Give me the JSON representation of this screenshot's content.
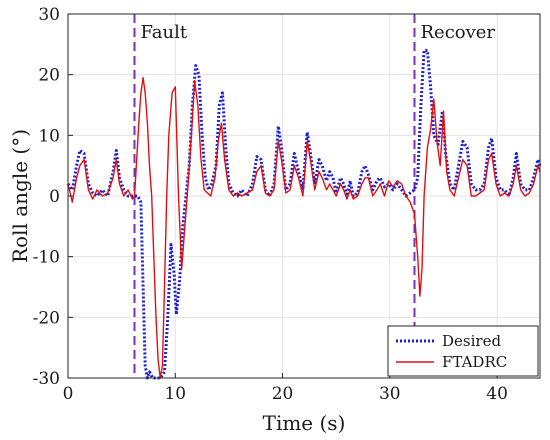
{
  "chart_data": {
    "type": "line",
    "xlabel": "Time (s)",
    "ylabel": "Roll angle (°)",
    "xlim": [
      0,
      44
    ],
    "ylim": [
      -30,
      30
    ],
    "xticks": [
      0,
      10,
      20,
      30,
      40
    ],
    "yticks": [
      -30,
      -20,
      -10,
      0,
      10,
      20,
      30
    ],
    "grid": true,
    "legend_position": "bottom-right",
    "annotations": [
      {
        "text": "Fault",
        "x": 6.2
      },
      {
        "text": "Recover",
        "x": 32.3
      }
    ],
    "vlines": [
      {
        "x": 6.2,
        "color": "#7b2fbf",
        "style": "dashed"
      },
      {
        "x": 32.3,
        "color": "#7b2fbf",
        "style": "dashed"
      }
    ],
    "series": [
      {
        "name": "Desired",
        "color": "#1f1fcf",
        "style": "dotted",
        "points": [
          [
            0,
            2
          ],
          [
            0.4,
            1
          ],
          [
            0.8,
            5
          ],
          [
            1.1,
            7.5
          ],
          [
            1.5,
            7
          ],
          [
            1.9,
            2
          ],
          [
            2.3,
            0.5
          ],
          [
            2.7,
            0
          ],
          [
            3.2,
            1
          ],
          [
            3.7,
            0
          ],
          [
            4.2,
            4
          ],
          [
            4.5,
            7.5
          ],
          [
            4.8,
            3
          ],
          [
            5.2,
            1
          ],
          [
            5.6,
            0
          ],
          [
            6.0,
            0
          ],
          [
            6.2,
            0
          ],
          [
            6.5,
            0
          ],
          [
            6.8,
            -1
          ],
          [
            7.0,
            -15
          ],
          [
            7.2,
            -28
          ],
          [
            7.4,
            -30
          ],
          [
            7.6,
            -29
          ],
          [
            7.9,
            -30
          ],
          [
            8.2,
            -30
          ],
          [
            8.6,
            -30
          ],
          [
            9.0,
            -29
          ],
          [
            9.3,
            -20
          ],
          [
            9.6,
            -8
          ],
          [
            9.9,
            -13
          ],
          [
            10.1,
            -19.5
          ],
          [
            10.4,
            -14
          ],
          [
            10.7,
            -5
          ],
          [
            11.0,
            0
          ],
          [
            11.3,
            5
          ],
          [
            11.6,
            15
          ],
          [
            11.9,
            21.5
          ],
          [
            12.2,
            20
          ],
          [
            12.5,
            10
          ],
          [
            12.8,
            3
          ],
          [
            13.1,
            1
          ],
          [
            13.4,
            2
          ],
          [
            13.8,
            5
          ],
          [
            14.1,
            15
          ],
          [
            14.4,
            17
          ],
          [
            14.7,
            8
          ],
          [
            15.0,
            2
          ],
          [
            15.4,
            0.5
          ],
          [
            15.8,
            0
          ],
          [
            16.2,
            1
          ],
          [
            16.7,
            0
          ],
          [
            17.2,
            2
          ],
          [
            17.6,
            6.5
          ],
          [
            18.0,
            6
          ],
          [
            18.4,
            1
          ],
          [
            18.8,
            0
          ],
          [
            19.2,
            2
          ],
          [
            19.6,
            11.5
          ],
          [
            19.9,
            8
          ],
          [
            20.3,
            1
          ],
          [
            20.7,
            2
          ],
          [
            21.1,
            7
          ],
          [
            21.5,
            4
          ],
          [
            21.9,
            1
          ],
          [
            22.3,
            10.5
          ],
          [
            22.6,
            7
          ],
          [
            23.0,
            2
          ],
          [
            23.4,
            6
          ],
          [
            23.7,
            5
          ],
          [
            24.1,
            2.5
          ],
          [
            24.4,
            4
          ],
          [
            24.7,
            3
          ],
          [
            25.0,
            0.5
          ],
          [
            25.4,
            3
          ],
          [
            25.7,
            2
          ],
          [
            26.0,
            0
          ],
          [
            26.3,
            2.5
          ],
          [
            26.6,
            0
          ],
          [
            27.0,
            0.5
          ],
          [
            27.4,
            4
          ],
          [
            27.7,
            5
          ],
          [
            28.0,
            3.5
          ],
          [
            28.4,
            1
          ],
          [
            28.8,
            2.5
          ],
          [
            29.1,
            3
          ],
          [
            29.5,
            1.5
          ],
          [
            29.9,
            2
          ],
          [
            30.3,
            1
          ],
          [
            30.7,
            2
          ],
          [
            31.1,
            1
          ],
          [
            31.5,
            0
          ],
          [
            31.9,
            0.5
          ],
          [
            32.3,
            1
          ],
          [
            32.6,
            3
          ],
          [
            32.9,
            15
          ],
          [
            33.2,
            24
          ],
          [
            33.5,
            24
          ],
          [
            33.8,
            18
          ],
          [
            34.1,
            10
          ],
          [
            34.5,
            8.5
          ],
          [
            34.9,
            14
          ],
          [
            35.2,
            7
          ],
          [
            35.6,
            2
          ],
          [
            36.0,
            1
          ],
          [
            36.4,
            5
          ],
          [
            36.8,
            9
          ],
          [
            37.2,
            8
          ],
          [
            37.6,
            2
          ],
          [
            38.0,
            1
          ],
          [
            38.4,
            1
          ],
          [
            38.8,
            2
          ],
          [
            39.2,
            8
          ],
          [
            39.5,
            9.5
          ],
          [
            39.9,
            3
          ],
          [
            40.3,
            1
          ],
          [
            40.7,
            1
          ],
          [
            41.1,
            0
          ],
          [
            41.5,
            3
          ],
          [
            41.8,
            7
          ],
          [
            42.2,
            2
          ],
          [
            42.6,
            1
          ],
          [
            43.0,
            1
          ],
          [
            43.4,
            3
          ],
          [
            43.8,
            6
          ],
          [
            44.0,
            5
          ]
        ]
      },
      {
        "name": "FTADRC",
        "color": "#e01010",
        "style": "solid",
        "points": [
          [
            0,
            2
          ],
          [
            0.4,
            -1
          ],
          [
            0.8,
            3
          ],
          [
            1.1,
            5
          ],
          [
            1.5,
            6
          ],
          [
            1.9,
            1
          ],
          [
            2.3,
            -0.5
          ],
          [
            2.7,
            1
          ],
          [
            3.2,
            0
          ],
          [
            3.7,
            0.5
          ],
          [
            4.2,
            3
          ],
          [
            4.5,
            6
          ],
          [
            4.8,
            2
          ],
          [
            5.2,
            0
          ],
          [
            5.6,
            1
          ],
          [
            6.0,
            -0.5
          ],
          [
            6.2,
            0
          ],
          [
            6.4,
            6
          ],
          [
            6.6,
            12
          ],
          [
            6.8,
            17
          ],
          [
            7.0,
            19.5
          ],
          [
            7.2,
            17
          ],
          [
            7.4,
            12
          ],
          [
            7.6,
            5
          ],
          [
            7.8,
            0
          ],
          [
            8.0,
            -10
          ],
          [
            8.2,
            -20
          ],
          [
            8.4,
            -27
          ],
          [
            8.6,
            -30
          ],
          [
            8.8,
            -28
          ],
          [
            9.0,
            -15
          ],
          [
            9.2,
            0
          ],
          [
            9.4,
            10
          ],
          [
            9.7,
            17
          ],
          [
            10.0,
            18
          ],
          [
            10.3,
            0
          ],
          [
            10.6,
            -12
          ],
          [
            10.9,
            -5
          ],
          [
            11.2,
            2
          ],
          [
            11.5,
            10
          ],
          [
            11.8,
            19
          ],
          [
            12.1,
            15
          ],
          [
            12.4,
            6
          ],
          [
            12.7,
            1
          ],
          [
            13.0,
            0.5
          ],
          [
            13.3,
            0
          ],
          [
            13.7,
            3
          ],
          [
            14.0,
            9
          ],
          [
            14.3,
            12
          ],
          [
            14.6,
            6
          ],
          [
            15.0,
            1
          ],
          [
            15.4,
            0
          ],
          [
            15.8,
            0.5
          ],
          [
            16.2,
            0
          ],
          [
            16.7,
            0.5
          ],
          [
            17.2,
            1
          ],
          [
            17.6,
            4
          ],
          [
            18.0,
            5
          ],
          [
            18.4,
            0.5
          ],
          [
            18.8,
            0
          ],
          [
            19.2,
            1
          ],
          [
            19.6,
            9
          ],
          [
            19.9,
            6
          ],
          [
            20.3,
            0.5
          ],
          [
            20.7,
            1
          ],
          [
            21.1,
            5
          ],
          [
            21.5,
            3
          ],
          [
            21.9,
            0
          ],
          [
            22.3,
            9
          ],
          [
            22.6,
            6
          ],
          [
            23.0,
            1
          ],
          [
            23.4,
            4
          ],
          [
            23.7,
            3
          ],
          [
            24.1,
            1
          ],
          [
            24.4,
            2
          ],
          [
            24.7,
            1
          ],
          [
            25.0,
            0
          ],
          [
            25.4,
            2
          ],
          [
            25.7,
            1
          ],
          [
            26.0,
            -0.5
          ],
          [
            26.3,
            1
          ],
          [
            26.6,
            -0.5
          ],
          [
            27.0,
            0
          ],
          [
            27.4,
            2
          ],
          [
            27.7,
            3
          ],
          [
            28.0,
            3
          ],
          [
            28.4,
            0
          ],
          [
            28.8,
            1
          ],
          [
            29.1,
            2
          ],
          [
            29.5,
            0
          ],
          [
            29.9,
            2.5
          ],
          [
            30.3,
            1.5
          ],
          [
            30.7,
            2.5
          ],
          [
            31.1,
            2
          ],
          [
            31.5,
            0
          ],
          [
            31.9,
            -1
          ],
          [
            32.3,
            -3
          ],
          [
            32.6,
            -10
          ],
          [
            32.8,
            -16.5
          ],
          [
            33.0,
            -12
          ],
          [
            33.2,
            0
          ],
          [
            33.5,
            8
          ],
          [
            33.8,
            11
          ],
          [
            34.1,
            16
          ],
          [
            34.4,
            9
          ],
          [
            34.7,
            5
          ],
          [
            35.0,
            14
          ],
          [
            35.3,
            4
          ],
          [
            35.6,
            1
          ],
          [
            36.0,
            0
          ],
          [
            36.4,
            3
          ],
          [
            36.8,
            6
          ],
          [
            37.2,
            5
          ],
          [
            37.6,
            0
          ],
          [
            38.0,
            0
          ],
          [
            38.4,
            0.5
          ],
          [
            38.8,
            1
          ],
          [
            39.2,
            6
          ],
          [
            39.5,
            7
          ],
          [
            39.9,
            2
          ],
          [
            40.3,
            0
          ],
          [
            40.7,
            0.5
          ],
          [
            41.1,
            0
          ],
          [
            41.5,
            2
          ],
          [
            41.8,
            5
          ],
          [
            42.2,
            1
          ],
          [
            42.6,
            0
          ],
          [
            43.0,
            0.5
          ],
          [
            43.4,
            2
          ],
          [
            43.8,
            5
          ],
          [
            44.0,
            4
          ]
        ]
      }
    ]
  }
}
